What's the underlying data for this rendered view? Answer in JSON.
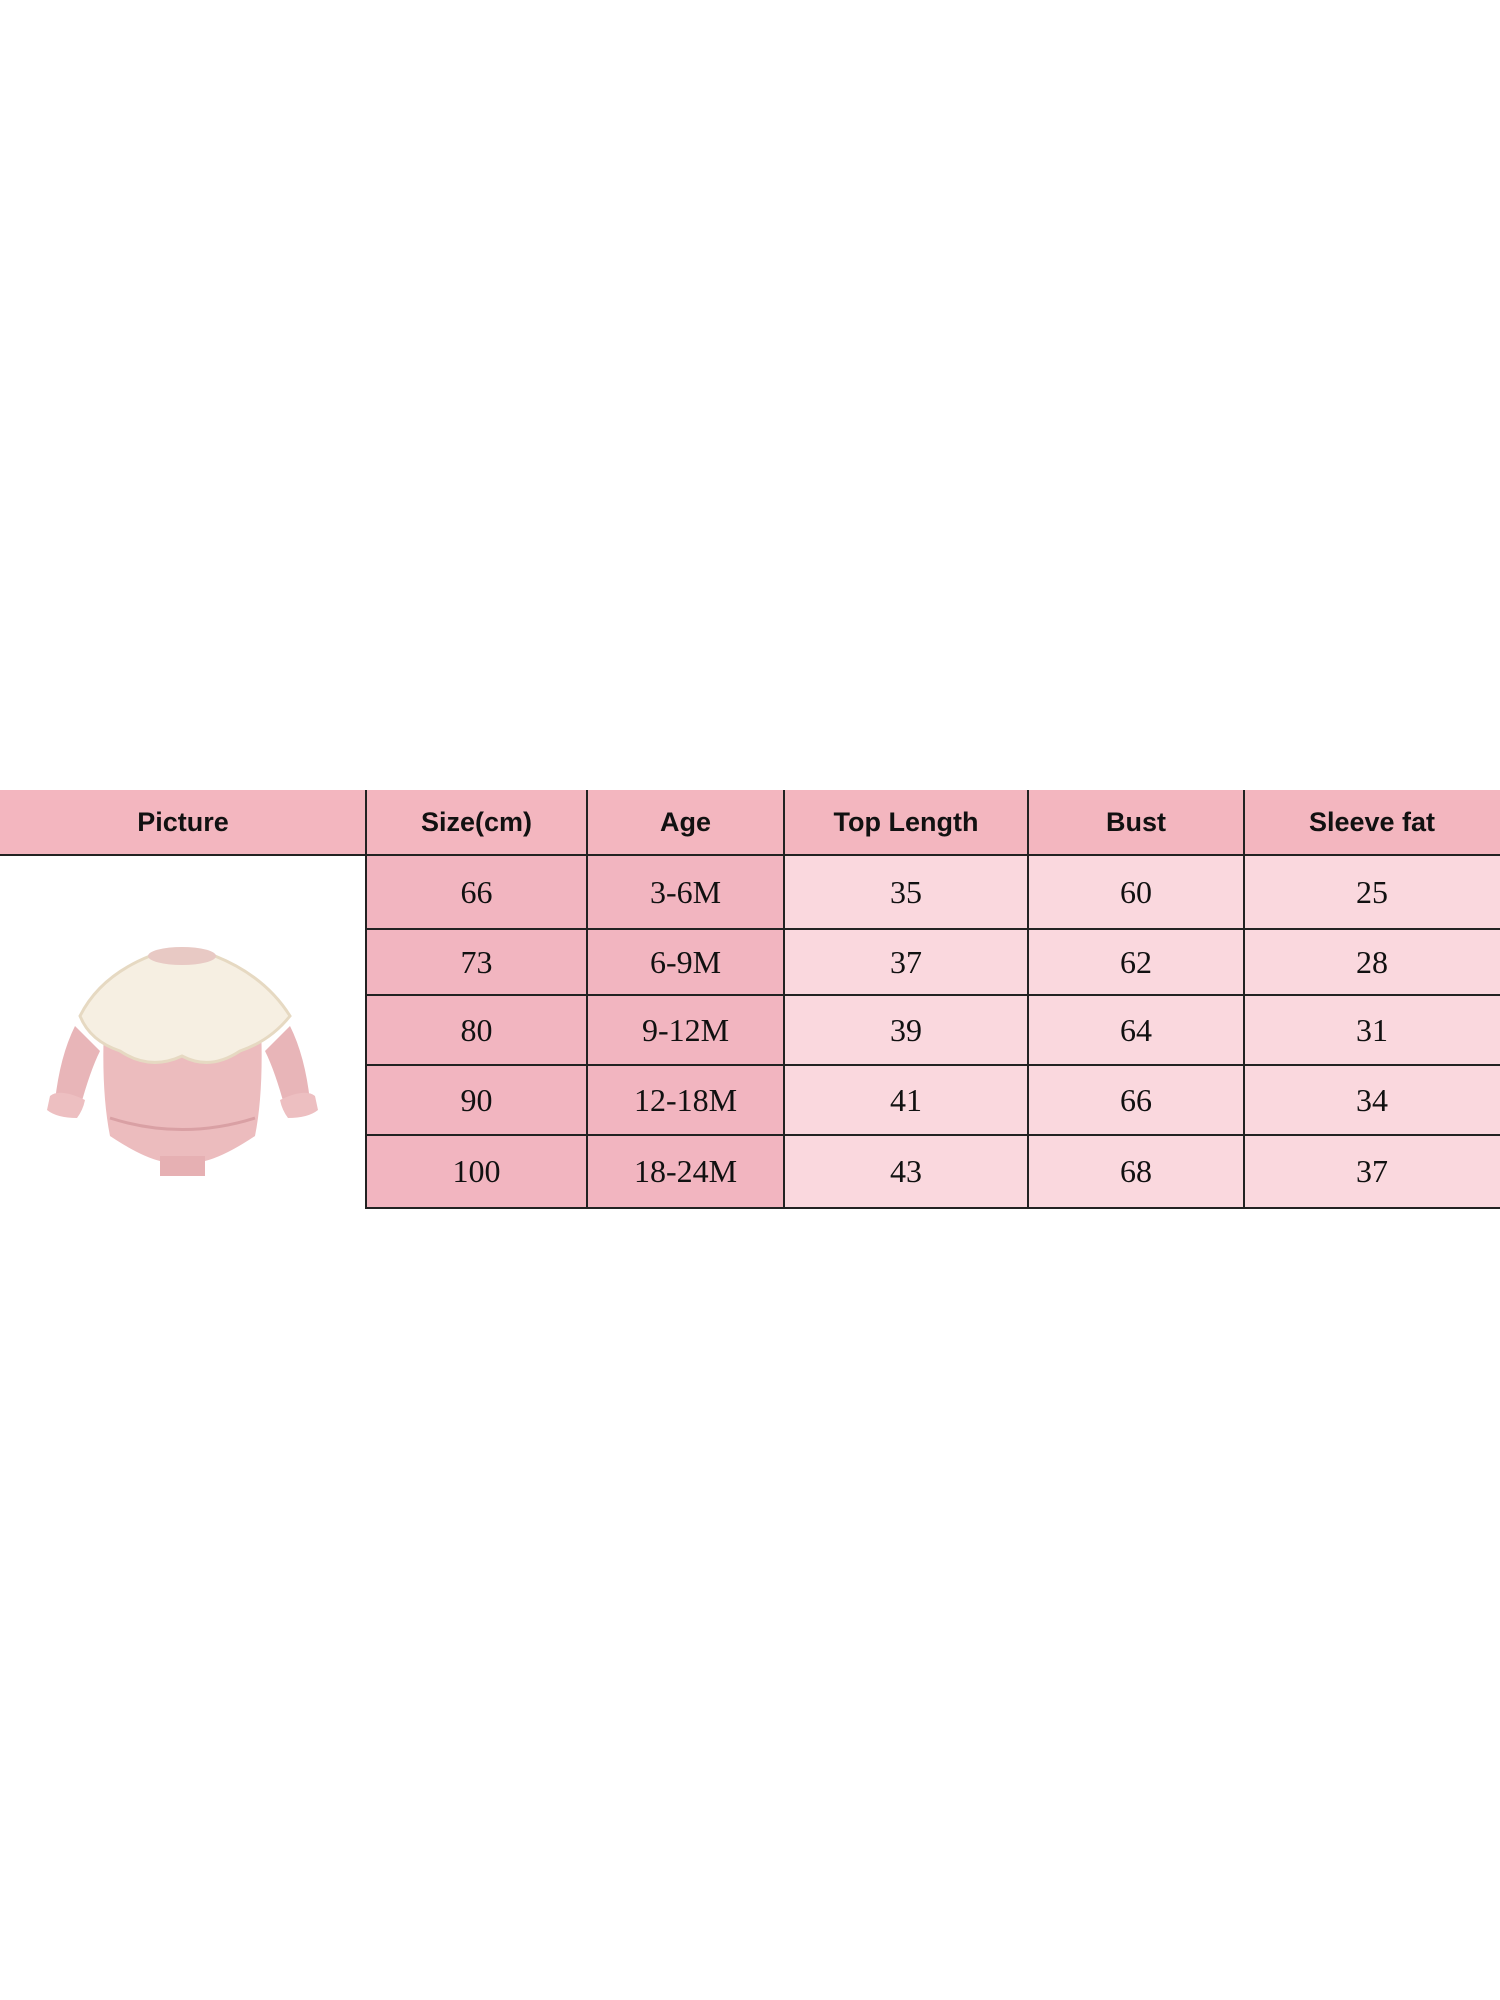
{
  "table": {
    "headers": [
      "Picture",
      "Size(cm)",
      "Age",
      "Top Length",
      "Bust",
      "Sleeve fat"
    ],
    "rows": [
      [
        "66",
        "3-6M",
        "35",
        "60",
        "25"
      ],
      [
        "73",
        "6-9M",
        "37",
        "62",
        "28"
      ],
      [
        "80",
        "9-12M",
        "39",
        "64",
        "31"
      ],
      [
        "90",
        "12-18M",
        "41",
        "66",
        "34"
      ],
      [
        "100",
        "18-24M",
        "43",
        "68",
        "37"
      ]
    ]
  },
  "picture": {
    "icon": "baby-romper-image"
  },
  "colors": {
    "header": "#f3b6bf",
    "size_age_cells": "#f2b5c0",
    "measure_cells": "#fad8de",
    "lines": "#222222"
  }
}
